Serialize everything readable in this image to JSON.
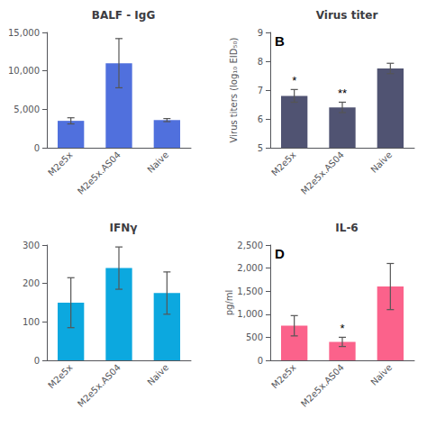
{
  "chart_data": [
    {
      "type": "bar",
      "title": "BALF - IgG",
      "categories": [
        "M2e5x",
        "M2e5x.AS04",
        "Naive"
      ],
      "values": [
        3500,
        11000,
        3600
      ],
      "errors": [
        400,
        3200,
        200
      ],
      "ylim": [
        0,
        15000
      ],
      "yticks": [
        0,
        {
          "value": 5000,
          "label": "5,000"
        },
        {
          "value": 10000,
          "label": "10,000"
        },
        {
          "value": 15000,
          "label": "15,000"
        }
      ],
      "grid": false
    },
    {
      "type": "bar",
      "title": "Virus titer",
      "ylabel": "Virus titers (log₁₀ EID₅₀)",
      "categories": [
        "M2e5x",
        "M2e5x.AS04",
        "Naive"
      ],
      "values": [
        6.8,
        6.4,
        7.75
      ],
      "errors": [
        0.22,
        0.18,
        0.18
      ],
      "significance": [
        "*",
        "**",
        null
      ],
      "panel_letter": "B",
      "ylim": [
        5,
        9
      ],
      "yticks": [
        5,
        6,
        7,
        8,
        9
      ],
      "grid": false
    },
    {
      "type": "bar",
      "title": "IFNγ",
      "categories": [
        "M2e5x",
        "M2e5x.AS04",
        "Naive"
      ],
      "values": [
        150,
        240,
        175
      ],
      "errors": [
        65,
        55,
        55
      ],
      "ylim": [
        0,
        300
      ],
      "yticks": [
        0,
        100,
        200,
        300
      ],
      "grid": false
    },
    {
      "type": "bar",
      "title": "IL-6",
      "ylabel": "pg/ml",
      "categories": [
        "M2e5x",
        "M2e5x.AS04",
        "Naive"
      ],
      "values": [
        750,
        400,
        1600
      ],
      "errors": [
        220,
        100,
        500
      ],
      "significance": [
        null,
        "*",
        null
      ],
      "panel_letter": "D",
      "ylim": [
        0,
        2500
      ],
      "yticks": [
        0,
        500,
        {
          "value": 1000,
          "label": "1,000"
        },
        {
          "value": 1500,
          "label": "1,500"
        },
        {
          "value": 2000,
          "label": "2,000"
        },
        {
          "value": 2500,
          "label": "2,500"
        }
      ],
      "grid": false
    }
  ]
}
